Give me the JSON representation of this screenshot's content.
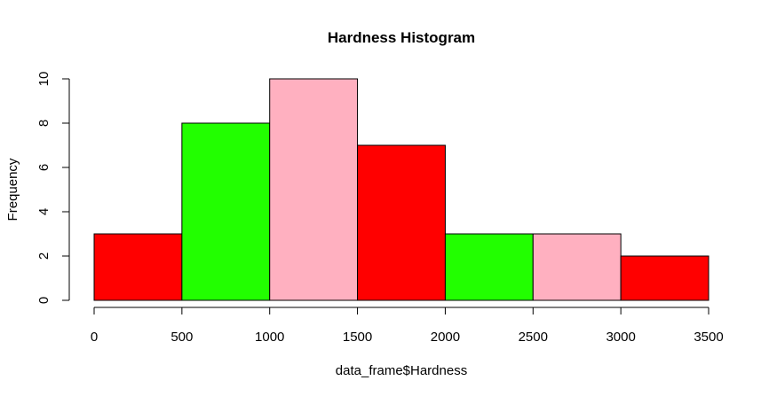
{
  "chart_data": {
    "type": "bar",
    "title": "Hardness Histogram",
    "xlabel": "data_frame$Hardness",
    "ylabel": "Frequency",
    "bins": [
      {
        "start": 0,
        "end": 500,
        "count": 3,
        "color": "#FF0000"
      },
      {
        "start": 500,
        "end": 1000,
        "count": 8,
        "color": "#22FF00"
      },
      {
        "start": 1000,
        "end": 1500,
        "count": 10,
        "color": "#FFB0C0"
      },
      {
        "start": 1500,
        "end": 2000,
        "count": 7,
        "color": "#FF0000"
      },
      {
        "start": 2000,
        "end": 2500,
        "count": 3,
        "color": "#22FF00"
      },
      {
        "start": 2500,
        "end": 3000,
        "count": 3,
        "color": "#FFB0C0"
      },
      {
        "start": 3000,
        "end": 3500,
        "count": 2,
        "color": "#FF0000"
      }
    ],
    "xticks": [
      0,
      500,
      1000,
      1500,
      2000,
      2500,
      3000,
      3500
    ],
    "xtick_labels": [
      "0",
      "500",
      "1000",
      "1500",
      "2000",
      "2500",
      "3000",
      "3500"
    ],
    "yticks": [
      0,
      2,
      4,
      6,
      8,
      10
    ],
    "ytick_labels": [
      "0",
      "2",
      "4",
      "6",
      "8",
      "10"
    ],
    "xlim": [
      0,
      3500
    ],
    "ylim": [
      0,
      10
    ],
    "grid": false,
    "legend": "none"
  }
}
